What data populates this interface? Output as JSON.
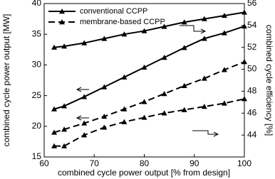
{
  "chart_data": {
    "type": "line",
    "xlabel": "combined cycle power output [% from design]",
    "ylabel": "combined cycle power output [MW]",
    "y2label": "combined cycle efficiency [%]",
    "xlim": [
      60,
      100
    ],
    "xticks": [
      60,
      70,
      80,
      90,
      100
    ],
    "ylim": [
      15,
      40
    ],
    "yticks": [
      15,
      20,
      25,
      30,
      35,
      40
    ],
    "y2lim": [
      42,
      56
    ],
    "y2ticks": [
      44,
      46,
      48,
      50,
      52,
      54,
      56
    ],
    "x": [
      62,
      64,
      68,
      72,
      76,
      80,
      84,
      88,
      92,
      96,
      100
    ],
    "legend_loc": "upper left",
    "series": [
      {
        "name": "conventional CCPP",
        "color": "#000000",
        "dash": "solid",
        "axis": "y2",
        "values": [
          52.0,
          52.1,
          52.4,
          52.8,
          53.2,
          53.5,
          53.9,
          54.3,
          54.6,
          54.9,
          55.2
        ]
      },
      {
        "name": "conventional CCPP",
        "color": "#000000",
        "dash": "solid",
        "axis": "y",
        "values": [
          22.8,
          23.3,
          24.8,
          26.4,
          28.0,
          29.6,
          31.2,
          32.8,
          34.3,
          35.2,
          36.3
        ]
      },
      {
        "name": "membrane-based CCPP",
        "color": "#000000",
        "dash": "dashed",
        "axis": "y",
        "values": [
          19.0,
          19.5,
          20.5,
          21.6,
          22.8,
          24.0,
          25.3,
          26.6,
          27.8,
          29.2,
          30.5
        ]
      },
      {
        "name": "membrane-based CCPP",
        "color": "#000000",
        "dash": "dashed",
        "axis": "y2",
        "values": [
          43.0,
          43.0,
          44.0,
          44.7,
          45.2,
          45.6,
          46.0,
          46.3,
          46.6,
          46.9,
          47.3
        ]
      }
    ]
  }
}
